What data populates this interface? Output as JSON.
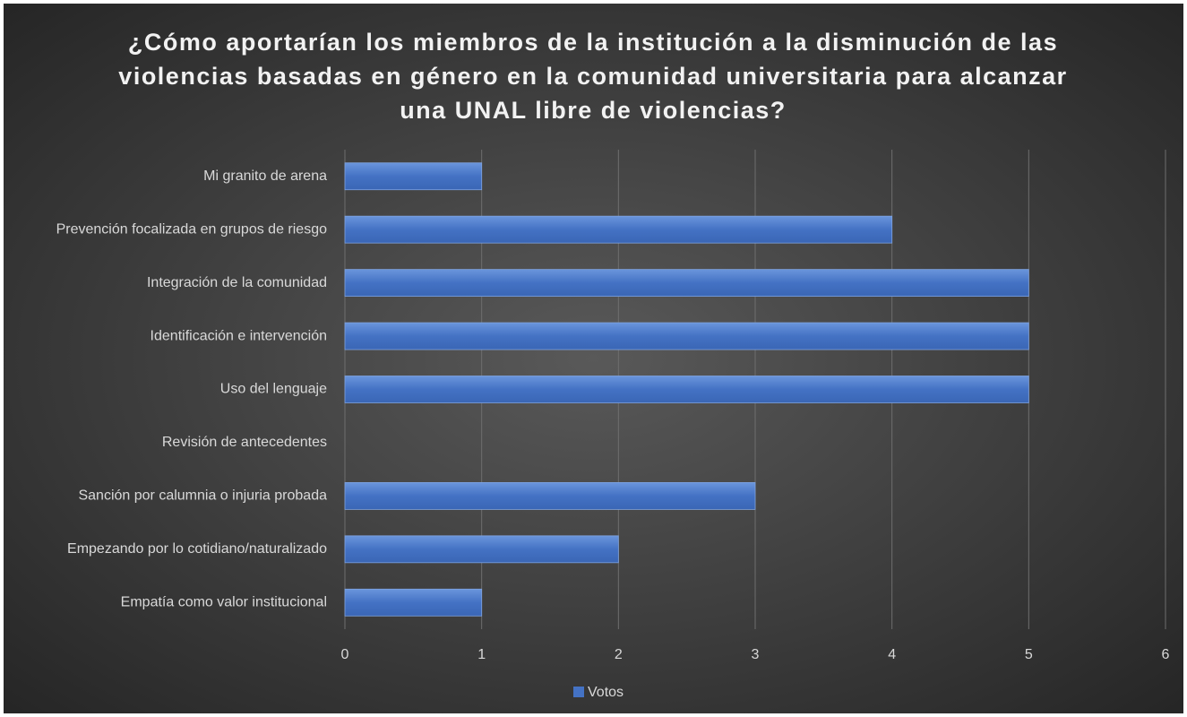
{
  "chart_data": {
    "type": "barh",
    "title": "¿Cómo aportarían los miembros de la institución a la disminución de las violencias basadas en género en la comunidad universitaria para alcanzar una UNAL libre de violencias?",
    "categories": [
      "Mi granito de arena",
      "Prevención focalizada en grupos de riesgo",
      "Integración de la comunidad",
      "Identificación e intervención",
      "Uso del lenguaje",
      "Revisión de antecedentes",
      "Sanción por calumnia o injuria probada",
      "Empezando por lo cotidiano/naturalizado",
      "Empatía como valor institucional"
    ],
    "series": [
      {
        "name": "Votos",
        "color": "#4472c4",
        "values": [
          1,
          4,
          5,
          5,
          5,
          0,
          3,
          2,
          1
        ]
      }
    ],
    "xlim": [
      0,
      6
    ],
    "xticks": [
      0,
      1,
      2,
      3,
      4,
      5,
      6
    ],
    "grid": true,
    "legend": "bottom"
  }
}
